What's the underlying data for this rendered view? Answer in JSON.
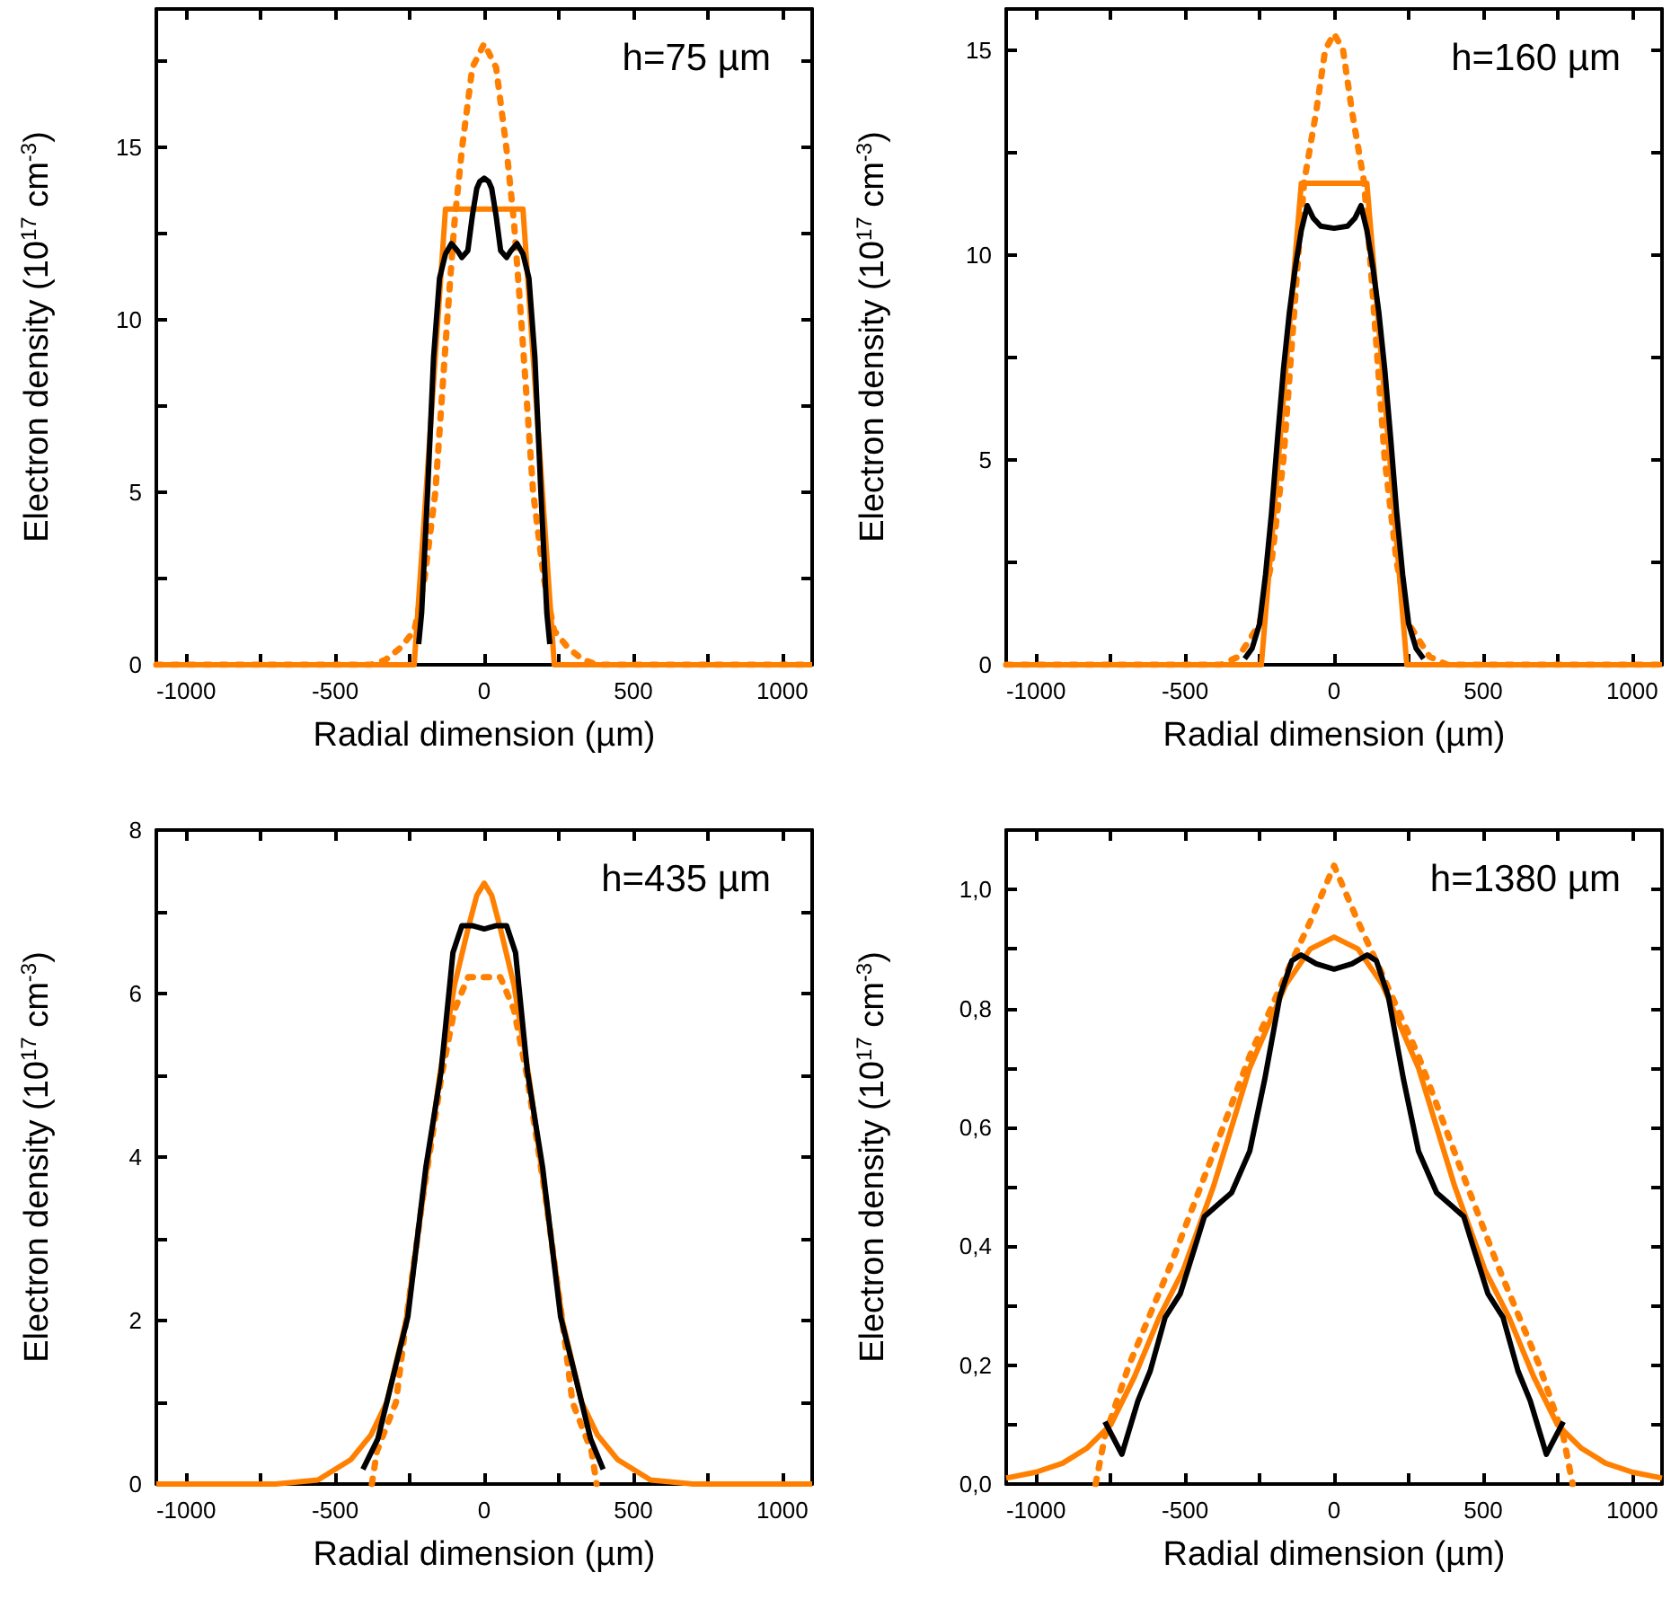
{
  "chart_data": [
    {
      "type": "line",
      "xlabel": "Radial dimension (µm)",
      "ylabel": "Electron density (10$^{17}$ cm$^{-3}$)",
      "annotations": [
        "h=75 µm"
      ],
      "marker": "none",
      "xlim": [
        -1100,
        1100
      ],
      "xticks": [
        -1000,
        {
          "value": -750,
          "label": null
        },
        -500,
        {
          "value": -250,
          "label": null
        },
        0,
        {
          "value": 250,
          "label": null
        },
        500,
        {
          "value": 750,
          "label": null
        },
        1000
      ],
      "ylim": [
        0,
        19
      ],
      "yticks": [
        0,
        {
          "value": 2.5,
          "label": null
        },
        5,
        {
          "value": 7.5,
          "label": null
        },
        10,
        {
          "value": 12.5,
          "label": null
        },
        15,
        {
          "value": 17.5,
          "label": null
        }
      ],
      "series": [
        {
          "color": "#ff8000",
          "line_style": "dotted",
          "x": [
            -1100,
            -380,
            -330,
            -280,
            -234,
            -200,
            -164,
            -124,
            -100,
            -74,
            -40,
            0,
            40,
            74,
            100,
            124,
            164,
            200,
            234,
            280,
            330,
            380,
            1100
          ],
          "values": [
            0,
            0,
            0.15,
            0.5,
            1,
            2.5,
            5,
            10,
            12.8,
            15,
            17.3,
            18,
            17.3,
            15,
            12.8,
            10,
            5,
            2.5,
            1,
            0.5,
            0.15,
            0,
            0
          ]
        },
        {
          "color": "#ff8000",
          "line_style": "solid",
          "x": [
            -1100,
            -235,
            -130,
            130,
            235,
            1100
          ],
          "values": [
            0,
            0,
            13.2,
            13.2,
            0,
            0
          ]
        },
        {
          "color": "#000000",
          "line_style": "solid",
          "x": [
            -220,
            -210,
            -190,
            -170,
            -150,
            -130,
            -110,
            -90,
            -75,
            -55,
            -40,
            -25,
            -15,
            0,
            15,
            25,
            40,
            55,
            75,
            90,
            110,
            130,
            150,
            170,
            190,
            210,
            220
          ],
          "values": [
            0.6,
            1.5,
            5,
            8.9,
            11.2,
            11.9,
            12.2,
            12,
            11.8,
            12,
            13,
            13.8,
            14,
            14.1,
            14,
            13.8,
            13,
            12,
            11.8,
            12,
            12.2,
            11.9,
            11.2,
            8.9,
            5,
            1.5,
            0.6
          ]
        }
      ]
    },
    {
      "type": "line",
      "xlabel": "Radial dimension (µm)",
      "ylabel": "Electron density (10$^{17}$ cm$^{-3}$)",
      "annotations": [
        "h=160 µm"
      ],
      "marker": "none",
      "xlim": [
        -1100,
        1100
      ],
      "xticks": [
        -1000,
        {
          "value": -750,
          "label": null
        },
        -500,
        {
          "value": -250,
          "label": null
        },
        0,
        {
          "value": 250,
          "label": null
        },
        500,
        {
          "value": 750,
          "label": null
        },
        1000
      ],
      "ylim": [
        0,
        16
      ],
      "yticks": [
        0,
        {
          "value": 2.5,
          "label": null
        },
        5,
        {
          "value": 7.5,
          "label": null
        },
        10,
        {
          "value": 12.5,
          "label": null
        },
        15
      ],
      "series": [
        {
          "color": "#ff8000",
          "line_style": "dotted",
          "x": [
            -1100,
            -380,
            -320,
            -250,
            -210,
            -170,
            -120,
            -100,
            -60,
            -30,
            0,
            30,
            60,
            100,
            120,
            170,
            210,
            250,
            320,
            380,
            1100
          ],
          "values": [
            0,
            0,
            0.2,
            1,
            2.5,
            5,
            10,
            11.8,
            13.5,
            15,
            15.4,
            15,
            13.5,
            11.8,
            10,
            5,
            2.5,
            1,
            0.2,
            0,
            0
          ]
        },
        {
          "color": "#ff8000",
          "line_style": "solid",
          "x": [
            -1100,
            -244,
            -110,
            110,
            244,
            1100
          ],
          "values": [
            0,
            0,
            11.75,
            11.75,
            0,
            0
          ]
        },
        {
          "color": "#000000",
          "line_style": "solid",
          "x": [
            -300,
            -275,
            -250,
            -230,
            -210,
            -190,
            -170,
            -150,
            -130,
            -110,
            -90,
            -70,
            -45,
            0,
            45,
            70,
            90,
            110,
            130,
            150,
            170,
            190,
            210,
            230,
            250,
            275,
            300
          ],
          "values": [
            0.15,
            0.4,
            1,
            2.2,
            3.7,
            5.5,
            7.2,
            8.6,
            9.7,
            10.6,
            11.2,
            10.9,
            10.7,
            10.65,
            10.7,
            10.9,
            11.2,
            10.6,
            9.7,
            8.6,
            7.2,
            5.5,
            3.7,
            2.2,
            1,
            0.4,
            0.15
          ]
        }
      ]
    },
    {
      "type": "line",
      "xlabel": "Radial dimension (µm)",
      "ylabel": "Electron density (10$^{17}$ cm$^{-3}$)",
      "annotations": [
        "h=435 µm"
      ],
      "marker": "none",
      "xlim": [
        -1100,
        1100
      ],
      "xticks": [
        -1000,
        {
          "value": -750,
          "label": null
        },
        -500,
        {
          "value": -250,
          "label": null
        },
        0,
        {
          "value": 250,
          "label": null
        },
        500,
        {
          "value": 750,
          "label": null
        },
        1000
      ],
      "ylim": [
        0,
        8
      ],
      "yticks": [
        0,
        {
          "value": 1,
          "label": null
        },
        2,
        {
          "value": 3,
          "label": null
        },
        4,
        {
          "value": 5,
          "label": null
        },
        6,
        {
          "value": 7,
          "label": null
        },
        8
      ],
      "series": [
        {
          "color": "#ff8000",
          "line_style": "solid",
          "x": [
            -1100,
            -700,
            -558,
            -447,
            -380,
            -327,
            -262,
            -206,
            -149,
            -100,
            -54,
            -25,
            0,
            25,
            54,
            100,
            149,
            206,
            262,
            327,
            380,
            447,
            558,
            700,
            1100
          ],
          "values": [
            0,
            0,
            0.05,
            0.3,
            0.6,
            1,
            2,
            3.5,
            5,
            6.1,
            6.8,
            7.2,
            7.35,
            7.2,
            6.8,
            6.1,
            5,
            3.5,
            2,
            1,
            0.6,
            0.3,
            0.05,
            0,
            0
          ]
        },
        {
          "color": "#ff8000",
          "line_style": "dotted",
          "x": [
            -377,
            -360,
            -296,
            -262,
            -206,
            -143,
            -100,
            -54,
            0,
            54,
            100,
            143,
            206,
            262,
            296,
            360,
            377
          ],
          "values": [
            0,
            0.4,
            1,
            2,
            3.5,
            5,
            5.8,
            6.2,
            6.2,
            6.2,
            5.8,
            5,
            3.5,
            2,
            1,
            0.4,
            0
          ]
        },
        {
          "color": "#000000",
          "line_style": "solid",
          "x": [
            -407,
            -357,
            -296,
            -256,
            -196,
            -145,
            -105,
            -75,
            -40,
            0,
            40,
            75,
            105,
            145,
            196,
            256,
            296,
            357,
            399
          ],
          "values": [
            0.18,
            0.55,
            1.46,
            2.05,
            3.87,
            5.04,
            6.5,
            6.83,
            6.83,
            6.79,
            6.83,
            6.83,
            6.5,
            5.04,
            3.87,
            2.05,
            1.46,
            0.55,
            0.18
          ]
        }
      ]
    },
    {
      "type": "line",
      "xlabel": "Radial dimension (µm)",
      "ylabel": "Electron density (10$^{17}$ cm$^{-3}$)",
      "annotations": [
        "h=1380 µm"
      ],
      "marker": "none",
      "xlim": [
        -1100,
        1100
      ],
      "xticks": [
        -1000,
        {
          "value": -750,
          "label": null
        },
        -500,
        {
          "value": -250,
          "label": null
        },
        0,
        {
          "value": 250,
          "label": null
        },
        500,
        {
          "value": 750,
          "label": null
        },
        1000
      ],
      "ylim": [
        0,
        1.1
      ],
      "yticks": [
        {
          "value": 0,
          "label": "0,0"
        },
        {
          "value": 0.1,
          "label": null
        },
        {
          "value": 0.2,
          "label": "0,2"
        },
        {
          "value": 0.3,
          "label": null
        },
        {
          "value": 0.4,
          "label": "0,4"
        },
        {
          "value": 0.5,
          "label": null
        },
        {
          "value": 0.6,
          "label": "0,6"
        },
        {
          "value": 0.7,
          "label": null
        },
        {
          "value": 0.8,
          "label": "0,8"
        },
        {
          "value": 0.9,
          "label": null
        },
        {
          "value": 1,
          "label": "1,0"
        }
      ],
      "series": [
        {
          "color": "#ff8000",
          "line_style": "solid",
          "x": [
            -1100,
            -1000,
            -911,
            -830,
            -749,
            -670,
            -587,
            -506,
            -405,
            -283,
            -162,
            -80,
            0,
            80,
            162,
            283,
            405,
            506,
            587,
            670,
            749,
            830,
            911,
            1000,
            1100
          ],
          "values": [
            0.01,
            0.02,
            0.035,
            0.06,
            0.1,
            0.18,
            0.28,
            0.36,
            0.5,
            0.7,
            0.84,
            0.9,
            0.92,
            0.9,
            0.84,
            0.7,
            0.5,
            0.36,
            0.28,
            0.18,
            0.1,
            0.06,
            0.035,
            0.02,
            0.01
          ]
        },
        {
          "color": "#ff8000",
          "line_style": "dotted",
          "x": [
            -800,
            -769,
            -688,
            -547,
            -425,
            -283,
            -150,
            -81,
            0,
            81,
            150,
            283,
            425,
            547,
            688,
            769,
            800
          ],
          "values": [
            0,
            0.08,
            0.2,
            0.37,
            0.53,
            0.72,
            0.87,
            0.945,
            1.04,
            0.945,
            0.87,
            0.72,
            0.53,
            0.37,
            0.2,
            0.08,
            0
          ]
        },
        {
          "color": "#000000",
          "line_style": "solid",
          "x": [
            -769,
            -712,
            -658,
            -617,
            -567,
            -516,
            -466,
            -435,
            -390,
            -344,
            -283,
            -233,
            -182,
            -142,
            -111,
            -60,
            0,
            60,
            111,
            142,
            182,
            233,
            283,
            344,
            390,
            435,
            466,
            516,
            567,
            617,
            658,
            712,
            769
          ],
          "values": [
            0.105,
            0.05,
            0.14,
            0.19,
            0.28,
            0.32,
            0.4,
            0.45,
            0.47,
            0.49,
            0.56,
            0.68,
            0.82,
            0.88,
            0.89,
            0.875,
            0.866,
            0.875,
            0.89,
            0.88,
            0.82,
            0.68,
            0.56,
            0.49,
            0.47,
            0.45,
            0.4,
            0.32,
            0.28,
            0.19,
            0.14,
            0.05,
            0.105
          ]
        }
      ]
    }
  ]
}
